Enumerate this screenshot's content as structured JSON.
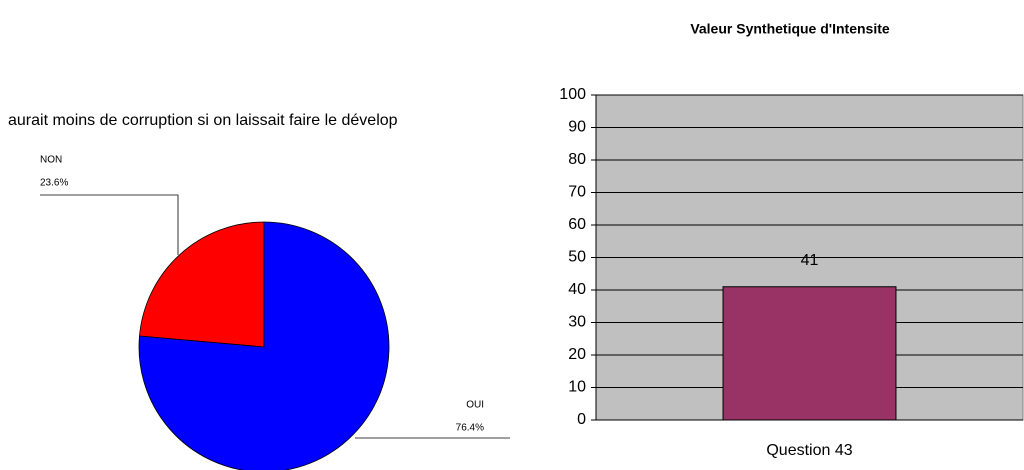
{
  "chart_data": [
    {
      "type": "pie",
      "title": "aurait moins de corruption si on laissait faire le dévelop",
      "categories": [
        "NON",
        "OUI"
      ],
      "values": [
        23.6,
        76.4
      ],
      "value_labels": [
        "23.6%",
        "76.4%"
      ],
      "colors": [
        "#ff0000",
        "#0000ff"
      ]
    },
    {
      "type": "bar",
      "title": "Valeur Synthetique d'Intensite",
      "categories": [
        "Question 43"
      ],
      "values": [
        41
      ],
      "color": "#993366",
      "ylim": [
        0,
        100
      ],
      "yticks": [
        0,
        10,
        20,
        30,
        40,
        50,
        60,
        70,
        80,
        90,
        100
      ],
      "grid": true
    }
  ]
}
